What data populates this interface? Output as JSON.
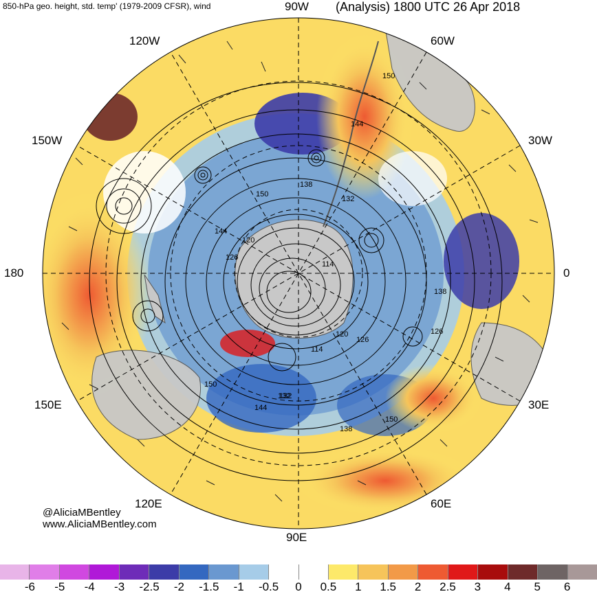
{
  "header": {
    "left_title": "850-hPa geo. height, std. temp' (1979-2009 CFSR), wind",
    "right_title": "(Analysis) 1800 UTC 26 Apr 2018"
  },
  "map": {
    "projection": "south-polar-stereographic",
    "longitude_labels": [
      "90W",
      "60W",
      "30W",
      "0",
      "30E",
      "60E",
      "90E",
      "120E",
      "150E",
      "180",
      "150W",
      "120W"
    ],
    "contour_labels": [
      "150",
      "144",
      "138",
      "132",
      "126",
      "120",
      "114",
      "150",
      "144",
      "138",
      "132",
      "126",
      "120",
      "114",
      "150",
      "144",
      "138",
      "132",
      "126",
      "150"
    ],
    "colors": {
      "land": "#c8c8c8",
      "coast": "#555555",
      "contour": "#000000",
      "grid": "#000000"
    }
  },
  "credit": {
    "line1": "@AliciaMBentley",
    "line2": "www.AliciaMBentley.com"
  },
  "colorbar": {
    "colors": [
      "#e8b4e8",
      "#e07ee8",
      "#d048e0",
      "#b018d8",
      "#6e2cb8",
      "#3c3ca8",
      "#3468c0",
      "#6a98d0",
      "#a6cce8",
      "#ffffff",
      "#ffffff",
      "#fde96a",
      "#f6c45a",
      "#f29a48",
      "#ee5a32",
      "#e01818",
      "#a80c0c",
      "#6e2a2a",
      "#6e6464",
      "#a89898"
    ],
    "tick_labels": [
      "-6",
      "-5",
      "-4",
      "-3",
      "-2.5",
      "-2",
      "-1.5",
      "-1",
      "-0.5",
      "0",
      "0.5",
      "1",
      "1.5",
      "2",
      "2.5",
      "3",
      "4",
      "5",
      "6"
    ]
  }
}
